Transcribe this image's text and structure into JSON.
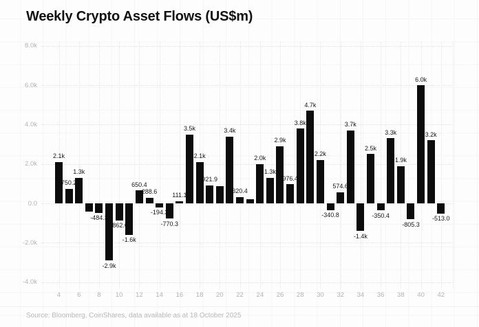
{
  "title": "Weekly Crypto Asset Flows (US$m)",
  "source_note": "Source: Bloomberg, CoinShares, data available as at 18 October 2025",
  "chart_data": {
    "type": "bar",
    "title": "Weekly Crypto Asset Flows (US$m)",
    "unit": "US$m",
    "x": [
      4,
      5,
      6,
      7,
      8,
      9,
      10,
      11,
      12,
      13,
      14,
      15,
      16,
      17,
      18,
      19,
      20,
      21,
      22,
      23,
      24,
      25,
      26,
      27,
      28,
      29,
      30,
      31,
      32,
      33,
      34,
      35,
      36,
      37,
      38,
      39,
      40,
      41,
      42
    ],
    "values": [
      2100,
      750.2,
      1300,
      -420,
      -484.3,
      -2900,
      -862.6,
      -1600,
      650.4,
      288.6,
      -194.3,
      -770.3,
      111.1,
      3500,
      2100,
      921.9,
      860,
      3400,
      320.4,
      200,
      2000,
      1300,
      2900,
      976.4,
      3800,
      4700,
      2200,
      -340.8,
      574.6,
      3700,
      -1400,
      2500,
      -350.4,
      3300,
      1900,
      -805.3,
      6000,
      3200,
      -513.0
    ],
    "bar_labels": [
      "2.1k",
      "750.2",
      "1.3k",
      "",
      "-484.3",
      "-2.9k",
      "-862.6",
      "-1.6k",
      "650.4",
      "288.6",
      "-194.3",
      "-770.3",
      "111.1",
      "3.5k",
      "2.1k",
      "921.9",
      "",
      "3.4k",
      "320.4",
      "",
      "2.0k",
      "1.3k",
      "2.9k",
      "976.4",
      "3.8k",
      "4.7k",
      "2.2k",
      "-340.8",
      "574.6",
      "3.7k",
      "-1.4k",
      "2.5k",
      "-350.4",
      "3.3k",
      "1.9k",
      "-805.3",
      "6.0k",
      "3.2k",
      "-513.0"
    ],
    "x_ticks": [
      4,
      6,
      8,
      10,
      12,
      14,
      16,
      18,
      20,
      22,
      24,
      26,
      28,
      30,
      32,
      34,
      36,
      38,
      40,
      42
    ],
    "x_tick_labels": [
      "4",
      "6",
      "8",
      "10",
      "12",
      "14",
      "16",
      "18",
      "20",
      "22",
      "24",
      "26",
      "28",
      "30",
      "32",
      "34",
      "36",
      "38",
      "40",
      "42"
    ],
    "y_ticks": [
      8000,
      6000,
      4000,
      2000,
      0,
      -2000,
      -4000
    ],
    "y_tick_labels": [
      "8.0k",
      "6.0k",
      "4.0k",
      "2.0k",
      "0.0",
      "-2.0k",
      "-4.0k"
    ],
    "ylim": [
      -4600,
      8800
    ],
    "grid": true,
    "legend_position": "none",
    "bar_color": "#0c0c0c",
    "axis_text_color": "#b3b3b3",
    "label_text_color": "#161616"
  }
}
